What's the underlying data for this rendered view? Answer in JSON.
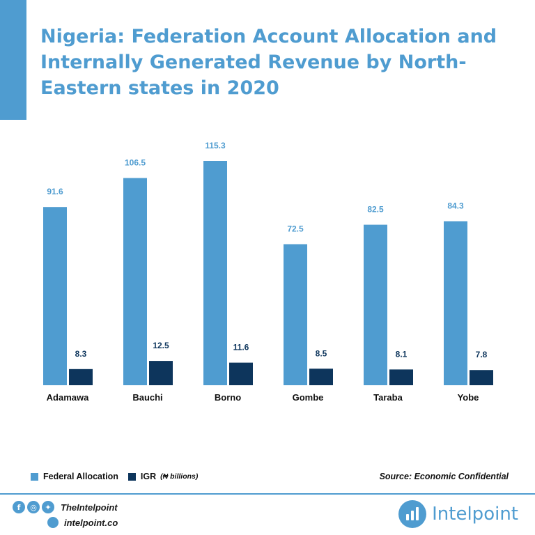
{
  "title": "Nigeria: Federation Account Allocation and Internally Generated Revenue by North-Eastern states in 2020",
  "colors": {
    "accent": "#4f9cd0",
    "federal": "#4f9cd0",
    "igr": "#0d355c"
  },
  "chart_data": {
    "type": "bar",
    "title": "Nigeria: Federation Account Allocation and Internally Generated Revenue by North-Eastern states in 2020",
    "categories": [
      "Adamawa",
      "Bauchi",
      "Borno",
      "Gombe",
      "Taraba",
      "Yobe"
    ],
    "series": [
      {
        "name": "Federal Allocation",
        "color": "#4f9cd0",
        "values": [
          91.6,
          106.5,
          115.3,
          72.5,
          82.5,
          84.3
        ]
      },
      {
        "name": "IGR",
        "color": "#0d355c",
        "values": [
          8.3,
          12.5,
          11.6,
          8.5,
          8.1,
          7.8
        ]
      }
    ],
    "units": "(₦ billions)",
    "ylim": [
      0,
      115.3
    ],
    "grid": false,
    "legend": "bottom-left"
  },
  "legend": {
    "federal": "Federal Allocation",
    "igr": "IGR",
    "units": "(₦ billions)"
  },
  "source": "Source: Economic Confidential",
  "footer": {
    "social_icons": [
      "facebook-icon",
      "instagram-icon",
      "twitter-icon"
    ],
    "handle": "TheIntelpoint",
    "website": "intelpoint.co",
    "brand": "Intelpoint"
  }
}
